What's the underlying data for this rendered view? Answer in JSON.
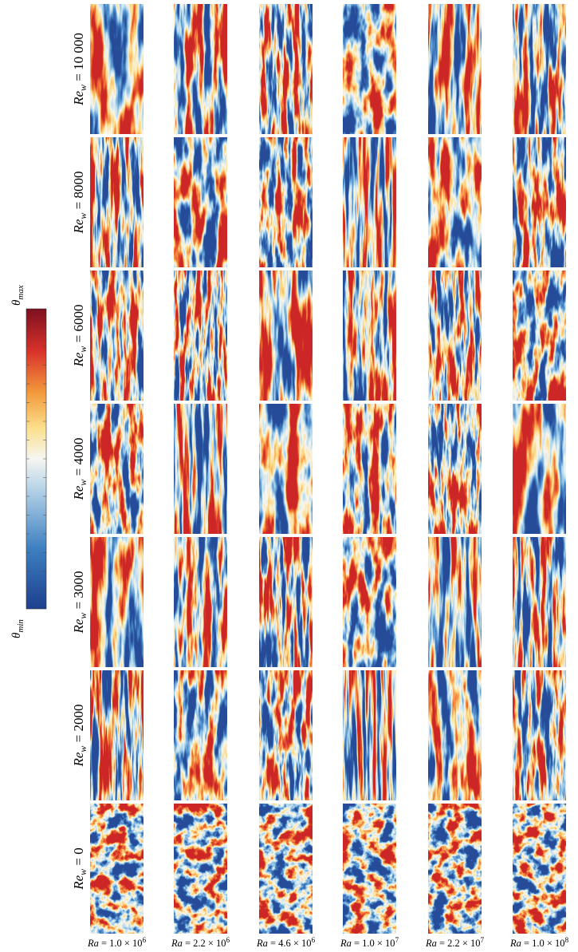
{
  "colorbar": {
    "top": {
      "symbol": "θ",
      "subscript": "max"
    },
    "bottom": {
      "symbol": "θ",
      "subscript": "min"
    }
  },
  "row_labels": [
    {
      "symbol": "Re",
      "subscript": "w",
      "text": " = 10 000"
    },
    {
      "symbol": "Re",
      "subscript": "w",
      "text": " = 8000"
    },
    {
      "symbol": "Re",
      "subscript": "w",
      "text": " = 6000"
    },
    {
      "symbol": "Re",
      "subscript": "w",
      "text": " = 4000"
    },
    {
      "symbol": "Re",
      "subscript": "w",
      "text": " = 3000"
    },
    {
      "symbol": "Re",
      "subscript": "w",
      "text": " = 2000"
    },
    {
      "symbol": "Re",
      "subscript": "w",
      "text": " = 0"
    }
  ],
  "column_labels": [
    {
      "symbol": "Ra",
      "text": " = 1.0 × 10",
      "exponent": "6"
    },
    {
      "symbol": "Ra",
      "text": " = 2.2 × 10",
      "exponent": "6"
    },
    {
      "symbol": "Ra",
      "text": " = 4.6 × 10",
      "exponent": "6"
    },
    {
      "symbol": "Ra",
      "text": " = 1.0 × 10",
      "exponent": "7"
    },
    {
      "symbol": "Ra",
      "text": " = 2.2 × 10",
      "exponent": "7"
    },
    {
      "symbol": "Ra",
      "text": " = 1.0 × 10",
      "exponent": "8"
    }
  ]
}
